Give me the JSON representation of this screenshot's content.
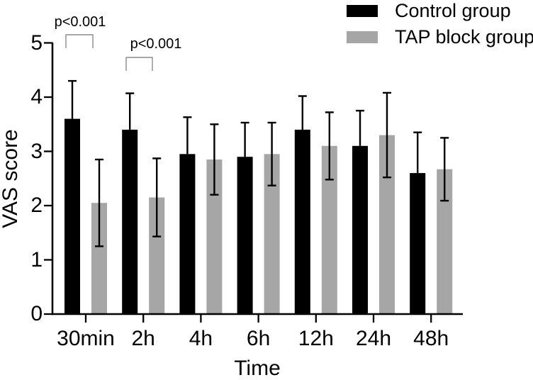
{
  "chart_data": {
    "type": "bar",
    "title": "",
    "xlabel": "Time",
    "ylabel": "VAS score",
    "categories": [
      "30min",
      "2h",
      "4h",
      "6h",
      "12h",
      "24h",
      "48h"
    ],
    "y_tick_labels": [
      "0",
      "1",
      "2",
      "3",
      "4",
      "5"
    ],
    "y_tick_values": [
      0,
      1,
      2,
      3,
      4,
      5
    ],
    "ylim": [
      0,
      5
    ],
    "grid": false,
    "legend_position": "top-right",
    "series": [
      {
        "name": "Control group",
        "key": "control",
        "color": "#000000",
        "values": [
          3.6,
          3.4,
          2.95,
          2.9,
          3.4,
          3.1,
          2.6
        ],
        "error_up": [
          0.7,
          0.67,
          0.68,
          0.63,
          0.62,
          0.65,
          0.75
        ],
        "error_down_visible": false
      },
      {
        "name": "TAP block group",
        "key": "tap-block",
        "color": "#a6a6a6",
        "values": [
          2.05,
          2.15,
          2.85,
          2.95,
          3.1,
          3.3,
          2.67
        ],
        "error_up": [
          0.8,
          0.72,
          0.65,
          0.58,
          0.62,
          0.78,
          0.58
        ],
        "error_down": [
          0.8,
          0.72,
          0.65,
          0.58,
          0.62,
          0.78,
          0.58
        ],
        "error_down_visible": true
      }
    ],
    "annotations": [
      {
        "text": "p<0.001",
        "at_category": "30min",
        "compares": [
          "Control group",
          "TAP block group"
        ]
      },
      {
        "text": "p<0.001",
        "at_category": "2h",
        "compares": [
          "Control group",
          "TAP block group"
        ]
      }
    ]
  }
}
